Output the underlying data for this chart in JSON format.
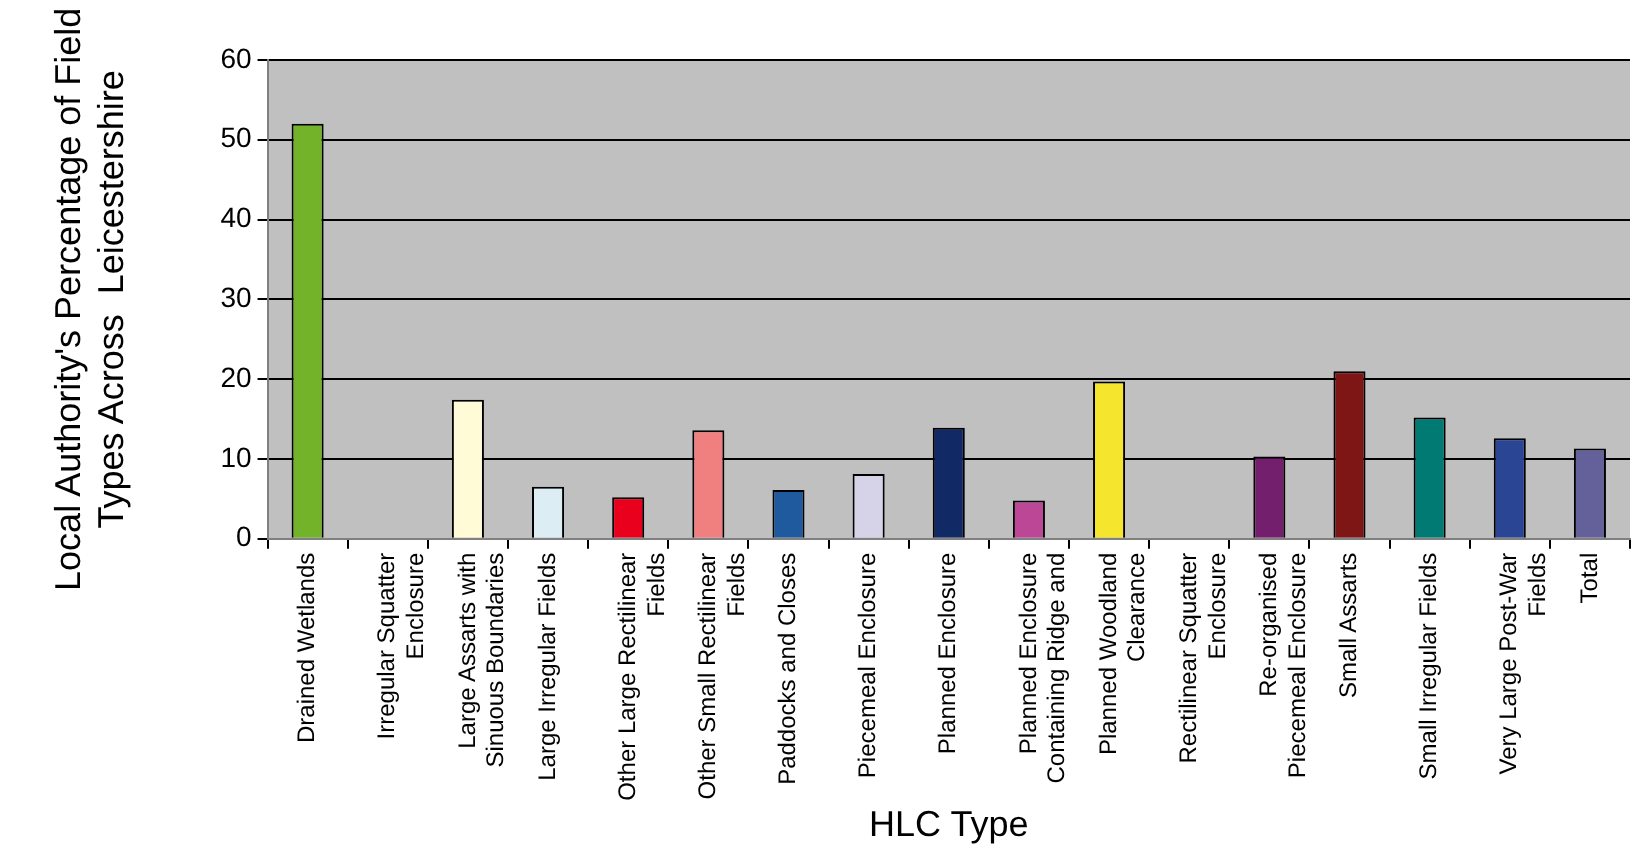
{
  "chart_data": {
    "type": "bar",
    "xlabel": "HLC Type",
    "ylabel": "Local Authority's Percentage of Field Types Across  Leicestershire",
    "categories": [
      "Drained Wetlands",
      "Irregular Squatter Enclosure",
      "Large Assarts with Sinuous Boundaries",
      "Large Irregular Fields",
      "Other Large Rectilinear Fields",
      "Other Small Rectilinear Fields",
      "Paddocks and Closes",
      "Piecemeal Enclosure",
      "Planned Enclosure",
      "Planned Enclosure Containing Ridge and",
      "Planned Woodland Clearance",
      "Rectilinear Squatter Enclosure",
      "Re-organised Piecemeal Enclosure",
      "Small Assarts",
      "Small Irregular Fields",
      "Very Large Post-War Fields",
      "Total"
    ],
    "values": [
      52,
      0,
      17.4,
      6.5,
      5.2,
      13.6,
      6.1,
      8.1,
      13.9,
      4.8,
      19.7,
      0,
      10.3,
      21,
      15.2,
      12.6,
      11.3
    ],
    "colors": [
      "#73b32a",
      "#ffffff",
      "#fffbd6",
      "#dcedf3",
      "#e8001c",
      "#f08080",
      "#1f5a9f",
      "#d6d2e8",
      "#112a66",
      "#bc4797",
      "#f5e52c",
      "#ffffff",
      "#741e6e",
      "#7f1616",
      "#007a72",
      "#2a4594",
      "#63609a"
    ],
    "ylim": [
      0,
      60
    ],
    "yticks": [
      0,
      10,
      20,
      30,
      40,
      50,
      60
    ],
    "grid": "y",
    "legend": false
  }
}
